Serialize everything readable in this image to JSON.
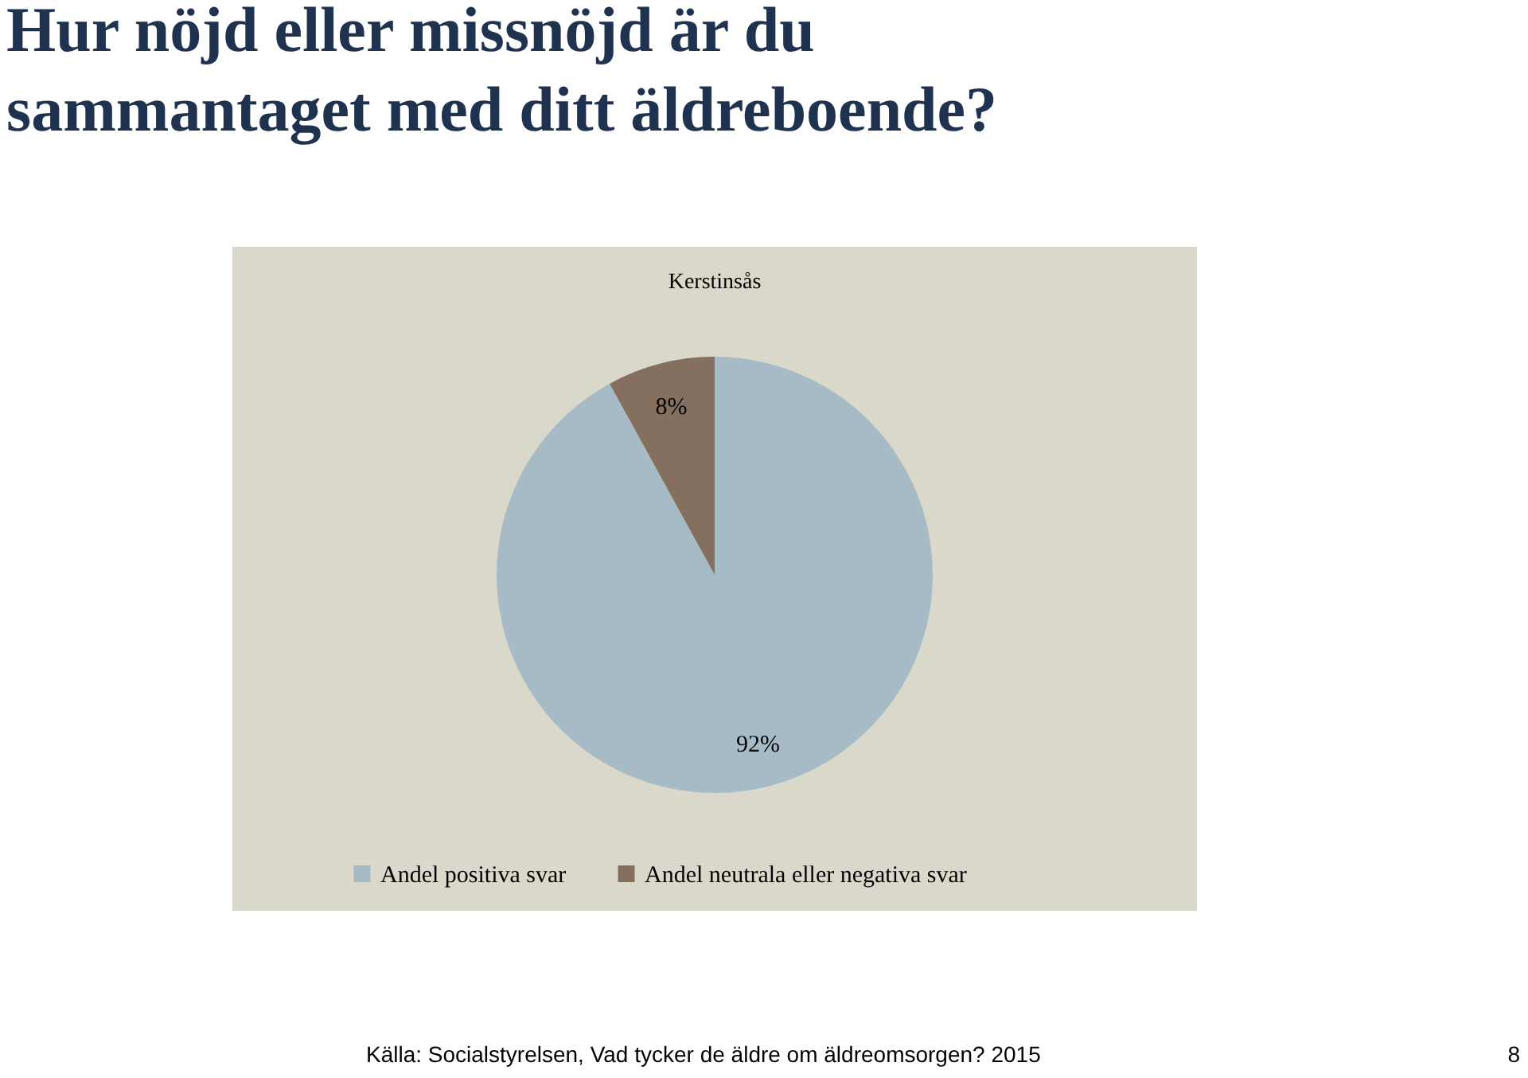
{
  "chart_data": {
    "type": "pie",
    "title": "Hur nöjd eller missnöjd är du sammantaget med ditt äldreboende?",
    "subtitle": "Kerstinsås",
    "categories": [
      "Andel positiva svar",
      "Andel neutrala eller negativa svar"
    ],
    "values": [
      92,
      8
    ],
    "colors": [
      "#a7bbc7",
      "#85705f"
    ],
    "value_labels": [
      "92%",
      "8%"
    ],
    "legend": "bottom",
    "annotations": [
      "Källa: Socialstyrelsen, Vad tycker de äldre om äldreomsorgen? 2015",
      "8"
    ]
  }
}
